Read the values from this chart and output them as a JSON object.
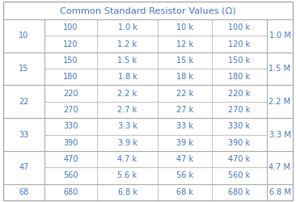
{
  "title": "Common Standard Resistor Values (Ω)",
  "text_color": "#4472C4",
  "bg_color": "#FFFFFF",
  "border_color": "#AAAAAA",
  "groups": [
    {
      "label": "10",
      "rows": [
        [
          "100",
          "1.0 k",
          "10 k",
          "100 k"
        ],
        [
          "120",
          "1.2 k",
          "12 k",
          "120 k"
        ]
      ],
      "mega": "1.0 M"
    },
    {
      "label": "15",
      "rows": [
        [
          "150",
          "1.5 k",
          "15 k",
          "150 k"
        ],
        [
          "180",
          "1.8 k",
          "18 k",
          "180 k"
        ]
      ],
      "mega": "1.5 M"
    },
    {
      "label": "22",
      "rows": [
        [
          "220",
          "2.2 k",
          "22 k",
          "220 k"
        ],
        [
          "270",
          "2.7 k",
          "27 k",
          "270 k"
        ]
      ],
      "mega": "2.2 M"
    },
    {
      "label": "33",
      "rows": [
        [
          "330",
          "3.3 k",
          "33 k",
          "330 k"
        ],
        [
          "390",
          "3.9 k",
          "39 k",
          "390 k"
        ]
      ],
      "mega": "3.3 M"
    },
    {
      "label": "47",
      "rows": [
        [
          "470",
          "4.7 k",
          "47 k",
          "470 k"
        ],
        [
          "560",
          "5.6 k",
          "56 k",
          "560 k"
        ]
      ],
      "mega": "4.7 M"
    },
    {
      "label": "68",
      "rows": [
        [
          "680",
          "6.8 k",
          "68 k",
          "680 k"
        ]
      ],
      "mega": "6.8 M"
    }
  ],
  "font_size": 7.0,
  "title_font_size": 8.2
}
